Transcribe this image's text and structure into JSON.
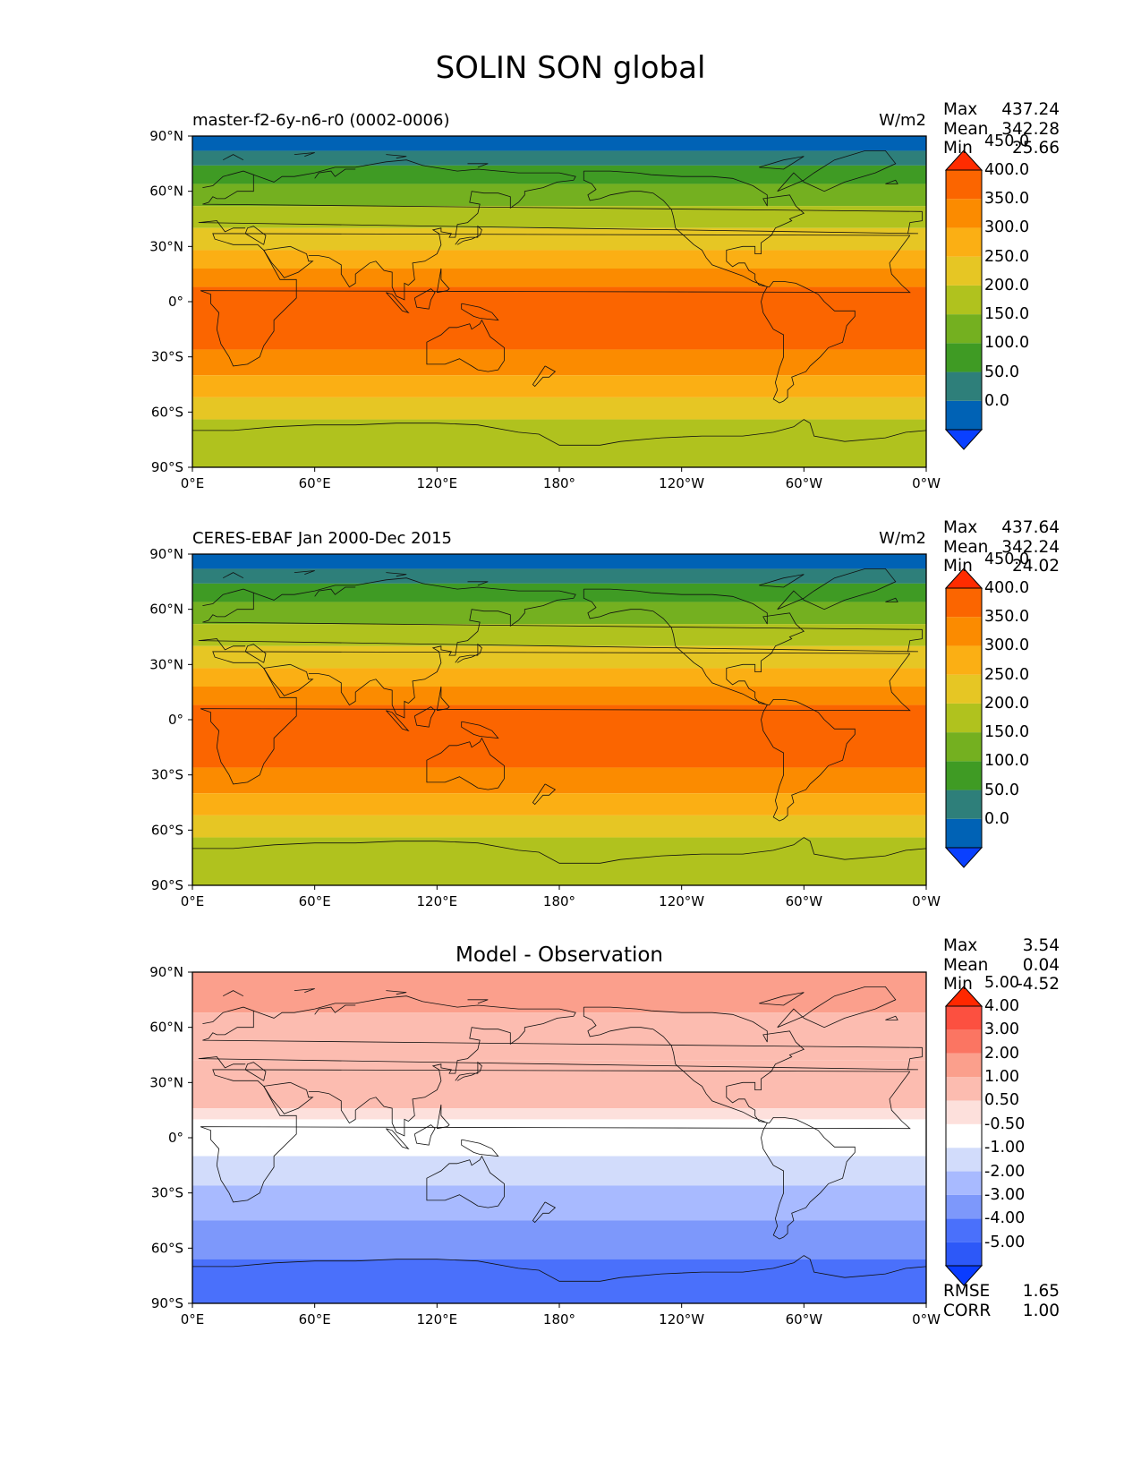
{
  "title": "SOLIN SON global",
  "chart_data": [
    {
      "type": "heatmap",
      "left_title": "master-f2-6y-n6-r0 (0002-0006)",
      "right_title": "W/m2",
      "stats": {
        "max_label": "Max",
        "max": "437.24",
        "mean_label": "Mean",
        "mean": "342.28",
        "min_label": "Min",
        "min": "25.66"
      },
      "x_ticks": [
        "0°E",
        "60°E",
        "120°E",
        "180°",
        "120°W",
        "60°W",
        "0°W"
      ],
      "y_ticks": [
        "90°N",
        "60°N",
        "30°N",
        "0°",
        "30°S",
        "60°S",
        "90°S"
      ],
      "xlim": [
        0,
        360
      ],
      "ylim": [
        -90,
        90
      ],
      "colorbar": {
        "levels": [
          "0.0",
          "50.0",
          "100.0",
          "150.0",
          "200.0",
          "250.0",
          "300.0",
          "350.0",
          "400.0",
          "450.0"
        ],
        "colors": [
          "#0a40ff",
          "#0062b5",
          "#2e7f7a",
          "#3f9b24",
          "#74b020",
          "#b0c21e",
          "#e6c624",
          "#fbaf14",
          "#fb8b00",
          "#fb6500",
          "#ff2c00"
        ]
      },
      "bands": [
        {
          "lat": [
            90,
            82
          ],
          "value": 25
        },
        {
          "lat": [
            82,
            74
          ],
          "value": 75
        },
        {
          "lat": [
            74,
            64
          ],
          "value": 125
        },
        {
          "lat": [
            64,
            52
          ],
          "value": 175
        },
        {
          "lat": [
            52,
            40
          ],
          "value": 225
        },
        {
          "lat": [
            40,
            28
          ],
          "value": 275
        },
        {
          "lat": [
            28,
            18
          ],
          "value": 325
        },
        {
          "lat": [
            18,
            8
          ],
          "value": 375
        },
        {
          "lat": [
            8,
            -26
          ],
          "value": 425
        },
        {
          "lat": [
            -26,
            -40
          ],
          "value": 375
        },
        {
          "lat": [
            -40,
            -52
          ],
          "value": 325
        },
        {
          "lat": [
            -52,
            -64
          ],
          "value": 275
        },
        {
          "lat": [
            -64,
            -90
          ],
          "value": 225
        }
      ]
    },
    {
      "type": "heatmap",
      "left_title": "CERES-EBAF Jan 2000-Dec 2015",
      "right_title": "W/m2",
      "stats": {
        "max_label": "Max",
        "max": "437.64",
        "mean_label": "Mean",
        "mean": "342.24",
        "min_label": "Min",
        "min": "24.02"
      },
      "x_ticks": [
        "0°E",
        "60°E",
        "120°E",
        "180°",
        "120°W",
        "60°W",
        "0°W"
      ],
      "y_ticks": [
        "90°N",
        "60°N",
        "30°N",
        "0°",
        "30°S",
        "60°S",
        "90°S"
      ],
      "xlim": [
        0,
        360
      ],
      "ylim": [
        -90,
        90
      ],
      "colorbar": {
        "levels": [
          "0.0",
          "50.0",
          "100.0",
          "150.0",
          "200.0",
          "250.0",
          "300.0",
          "350.0",
          "400.0",
          "450.0"
        ],
        "colors": [
          "#0a40ff",
          "#0062b5",
          "#2e7f7a",
          "#3f9b24",
          "#74b020",
          "#b0c21e",
          "#e6c624",
          "#fbaf14",
          "#fb8b00",
          "#fb6500",
          "#ff2c00"
        ]
      },
      "bands": [
        {
          "lat": [
            90,
            82
          ],
          "value": 25
        },
        {
          "lat": [
            82,
            74
          ],
          "value": 75
        },
        {
          "lat": [
            74,
            64
          ],
          "value": 125
        },
        {
          "lat": [
            64,
            52
          ],
          "value": 175
        },
        {
          "lat": [
            52,
            40
          ],
          "value": 225
        },
        {
          "lat": [
            40,
            28
          ],
          "value": 275
        },
        {
          "lat": [
            28,
            18
          ],
          "value": 325
        },
        {
          "lat": [
            18,
            8
          ],
          "value": 375
        },
        {
          "lat": [
            8,
            -26
          ],
          "value": 425
        },
        {
          "lat": [
            -26,
            -40
          ],
          "value": 375
        },
        {
          "lat": [
            -40,
            -52
          ],
          "value": 325
        },
        {
          "lat": [
            -52,
            -64
          ],
          "value": 275
        },
        {
          "lat": [
            -64,
            -90
          ],
          "value": 225
        }
      ]
    },
    {
      "type": "heatmap",
      "center_title": "Model - Observation",
      "stats": {
        "max_label": "Max",
        "max": "3.54",
        "mean_label": "Mean",
        "mean": "0.04",
        "min_label": "Min",
        "min": "-4.52"
      },
      "rmse_label": "RMSE",
      "rmse": "1.65",
      "corr_label": "CORR",
      "corr": "1.00",
      "x_ticks": [
        "0°E",
        "60°E",
        "120°E",
        "180°",
        "120°W",
        "60°W",
        "0°W"
      ],
      "y_ticks": [
        "90°N",
        "60°N",
        "30°N",
        "0°",
        "30°S",
        "60°S",
        "90°S"
      ],
      "xlim": [
        0,
        360
      ],
      "ylim": [
        -90,
        90
      ],
      "colorbar": {
        "levels": [
          "-5.00",
          "-4.00",
          "-3.00",
          "-2.00",
          "-1.00",
          "-0.50",
          "0.50",
          "1.00",
          "2.00",
          "3.00",
          "4.00",
          "5.00"
        ],
        "colors": [
          "#0a3cff",
          "#2d58f8",
          "#4a70fb",
          "#7d98fb",
          "#a8baff",
          "#d2dcfb",
          "#ffffff",
          "#fde0dc",
          "#fcbcb0",
          "#fb9f8c",
          "#fb7562",
          "#fc5040",
          "#ff2800"
        ]
      },
      "bands": [
        {
          "lat": [
            90,
            68
          ],
          "value": 2.5
        },
        {
          "lat": [
            68,
            42
          ],
          "value": 1.5
        },
        {
          "lat": [
            42,
            16
          ],
          "value": 1.5
        },
        {
          "lat": [
            16,
            10
          ],
          "value": 0.75
        },
        {
          "lat": [
            10,
            -10
          ],
          "value": 0
        },
        {
          "lat": [
            -10,
            -26
          ],
          "value": -0.75
        },
        {
          "lat": [
            -26,
            -45
          ],
          "value": -1.5
        },
        {
          "lat": [
            -45,
            -66
          ],
          "value": -2.5
        },
        {
          "lat": [
            -66,
            -90
          ],
          "value": -3.5
        }
      ]
    }
  ]
}
